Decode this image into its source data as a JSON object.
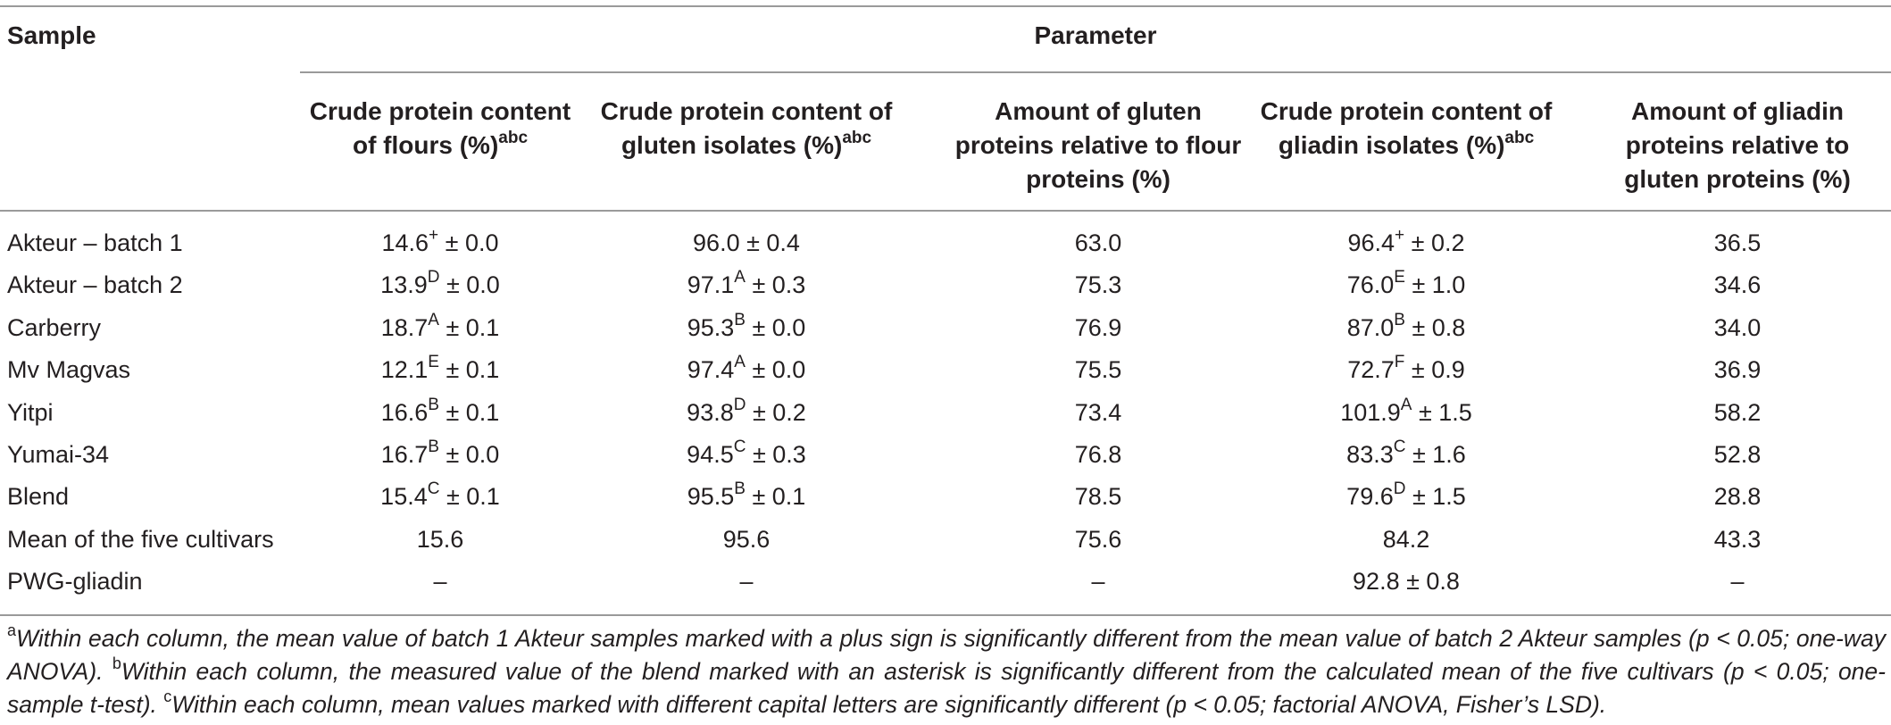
{
  "header": {
    "sample_label": "Sample",
    "parameter_label": "Parameter"
  },
  "columns": [
    {
      "name_lines": [
        "Crude protein content",
        "of flours (%)"
      ],
      "superscript": "abc"
    },
    {
      "name_lines": [
        "Crude protein content of",
        "gluten isolates (%)"
      ],
      "superscript": "abc"
    },
    {
      "name_lines": [
        "Amount of gluten",
        "proteins relative to flour",
        "proteins (%)"
      ],
      "superscript": ""
    },
    {
      "name_lines": [
        "Crude protein content of",
        "gliadin isolates (%)"
      ],
      "superscript": "abc"
    },
    {
      "name_lines": [
        "Amount of gliadin",
        "proteins relative to",
        "gluten proteins (%)"
      ],
      "superscript": ""
    }
  ],
  "rows": [
    {
      "sample": "Akteur – batch 1",
      "cells": [
        {
          "value": "14.6",
          "sup": "+",
          "sd": "± 0.0"
        },
        {
          "value": "96.0",
          "sup": "",
          "sd": "± 0.4"
        },
        {
          "value": "63.0",
          "sup": "",
          "sd": ""
        },
        {
          "value": "96.4",
          "sup": "+",
          "sd": "± 0.2"
        },
        {
          "value": "36.5",
          "sup": "",
          "sd": ""
        }
      ]
    },
    {
      "sample": "Akteur – batch 2",
      "cells": [
        {
          "value": "13.9",
          "sup": "D",
          "sd": "± 0.0"
        },
        {
          "value": "97.1",
          "sup": "A",
          "sd": "± 0.3"
        },
        {
          "value": "75.3",
          "sup": "",
          "sd": ""
        },
        {
          "value": "76.0",
          "sup": "E",
          "sd": "± 1.0"
        },
        {
          "value": "34.6",
          "sup": "",
          "sd": ""
        }
      ]
    },
    {
      "sample": "Carberry",
      "cells": [
        {
          "value": "18.7",
          "sup": "A",
          "sd": "± 0.1"
        },
        {
          "value": "95.3",
          "sup": "B",
          "sd": "± 0.0"
        },
        {
          "value": "76.9",
          "sup": "",
          "sd": ""
        },
        {
          "value": "87.0",
          "sup": "B",
          "sd": "± 0.8"
        },
        {
          "value": "34.0",
          "sup": "",
          "sd": ""
        }
      ]
    },
    {
      "sample": "Mv Magvas",
      "cells": [
        {
          "value": "12.1",
          "sup": "E",
          "sd": "± 0.1"
        },
        {
          "value": "97.4",
          "sup": "A",
          "sd": "± 0.0"
        },
        {
          "value": "75.5",
          "sup": "",
          "sd": ""
        },
        {
          "value": "72.7",
          "sup": "F",
          "sd": "± 0.9"
        },
        {
          "value": "36.9",
          "sup": "",
          "sd": ""
        }
      ]
    },
    {
      "sample": "Yitpi",
      "cells": [
        {
          "value": "16.6",
          "sup": "B",
          "sd": "± 0.1"
        },
        {
          "value": "93.8",
          "sup": "D",
          "sd": "± 0.2"
        },
        {
          "value": "73.4",
          "sup": "",
          "sd": ""
        },
        {
          "value": "101.9",
          "sup": "A",
          "sd": "± 1.5"
        },
        {
          "value": "58.2",
          "sup": "",
          "sd": ""
        }
      ]
    },
    {
      "sample": "Yumai-34",
      "cells": [
        {
          "value": "16.7",
          "sup": "B",
          "sd": "± 0.0"
        },
        {
          "value": "94.5",
          "sup": "C",
          "sd": "± 0.3"
        },
        {
          "value": "76.8",
          "sup": "",
          "sd": ""
        },
        {
          "value": "83.3",
          "sup": "C",
          "sd": "± 1.6"
        },
        {
          "value": "52.8",
          "sup": "",
          "sd": ""
        }
      ]
    },
    {
      "sample": "Blend",
      "cells": [
        {
          "value": "15.4",
          "sup": "C",
          "sd": "± 0.1"
        },
        {
          "value": "95.5",
          "sup": "B",
          "sd": "± 0.1"
        },
        {
          "value": "78.5",
          "sup": "",
          "sd": ""
        },
        {
          "value": "79.6",
          "sup": "D",
          "sd": "± 1.5"
        },
        {
          "value": "28.8",
          "sup": "",
          "sd": ""
        }
      ]
    },
    {
      "sample": "Mean of the five cultivars",
      "cells": [
        {
          "value": "15.6",
          "sup": "",
          "sd": ""
        },
        {
          "value": "95.6",
          "sup": "",
          "sd": ""
        },
        {
          "value": "75.6",
          "sup": "",
          "sd": ""
        },
        {
          "value": "84.2",
          "sup": "",
          "sd": ""
        },
        {
          "value": "43.3",
          "sup": "",
          "sd": ""
        }
      ]
    },
    {
      "sample": "PWG-gliadin",
      "cells": [
        {
          "value": "–",
          "sup": "",
          "sd": ""
        },
        {
          "value": "–",
          "sup": "",
          "sd": ""
        },
        {
          "value": "–",
          "sup": "",
          "sd": ""
        },
        {
          "value": "92.8",
          "sup": "",
          "sd": "± 0.8"
        },
        {
          "value": "–",
          "sup": "",
          "sd": ""
        }
      ]
    }
  ],
  "footnotes": [
    {
      "marker": "a",
      "text": "Within each column, the mean value of batch 1 Akteur samples marked with a plus sign is significantly different from the mean value of batch 2 Akteur samples (p < 0.05; one-way ANOVA)."
    },
    {
      "marker": "b",
      "text": "Within each column, the measured value of the blend marked with an asterisk is significantly different from the calculated mean of the five cultivars (p < 0.05; one-sample t-test)."
    },
    {
      "marker": "c",
      "text": "Within each column, mean values marked with different capital letters are significantly different (p < 0.05; factorial ANOVA, Fisher’s LSD)."
    }
  ]
}
